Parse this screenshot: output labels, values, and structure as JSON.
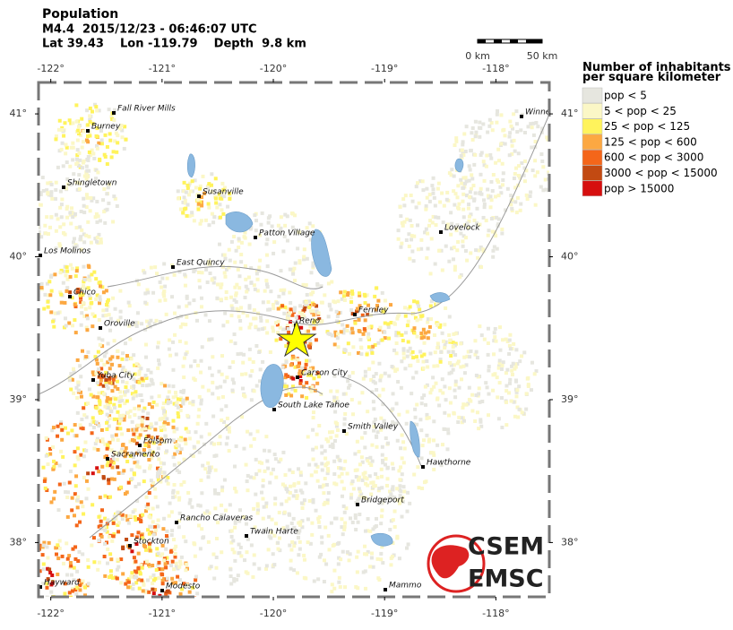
{
  "header": {
    "title": "Population",
    "event": "M4.4  2015/12/23 - 06:46:07 UTC",
    "location": "Lat 39.43    Lon -119.79    Depth  9.8 km"
  },
  "scale": {
    "start": "0 km",
    "end": "50 km"
  },
  "lon_ticks": [
    {
      "value": -122,
      "label": "-122°"
    },
    {
      "value": -121,
      "label": "-121°"
    },
    {
      "value": -120,
      "label": "-120°"
    },
    {
      "value": -119,
      "label": "-119°"
    },
    {
      "value": -118,
      "label": "-118°"
    }
  ],
  "lat_ticks": [
    {
      "value": 41,
      "label": "41°"
    },
    {
      "value": 40,
      "label": "40°"
    },
    {
      "value": 39,
      "label": "39°"
    },
    {
      "value": 38,
      "label": "38°"
    }
  ],
  "lonlim": [
    -122.11,
    -117.52
  ],
  "latlim": [
    41.22,
    37.62
  ],
  "legend": {
    "title": "Number of inhabitants per square kilometer",
    "items": [
      {
        "label": "pop < 5",
        "color": "#e6e6df"
      },
      {
        "label": "5 < pop < 25",
        "color": "#fbf7c6"
      },
      {
        "label": "25 < pop < 125",
        "color": "#fff35c"
      },
      {
        "label": "125 < pop < 600",
        "color": "#fca842"
      },
      {
        "label": "600 < pop < 3000",
        "color": "#f4661a"
      },
      {
        "label": "3000 < pop < 15000",
        "color": "#c24a12"
      },
      {
        "label": "pop > 15000",
        "color": "#d60f0f"
      }
    ]
  },
  "cities": [
    "Fall River Mills",
    "Burney",
    "Shingletown",
    "Susanville",
    "Patton Village",
    "Los Molinos",
    "East Quincy",
    "Chico",
    "Oroville",
    "Reno",
    "Fernley",
    "Yuba City",
    "Carson City",
    "South Lake Tahoe",
    "Smith Valley",
    "Folsom",
    "Sacramento",
    "Hawthorne",
    "Bridgeport",
    "Rancho Calaveras",
    "Twain Harte",
    "Stockton",
    "Hayward",
    "Modesto",
    "Mammo",
    "Winne",
    "Lovelock"
  ],
  "logo": {
    "top": "CSEM",
    "bottom": "EMSC"
  }
}
